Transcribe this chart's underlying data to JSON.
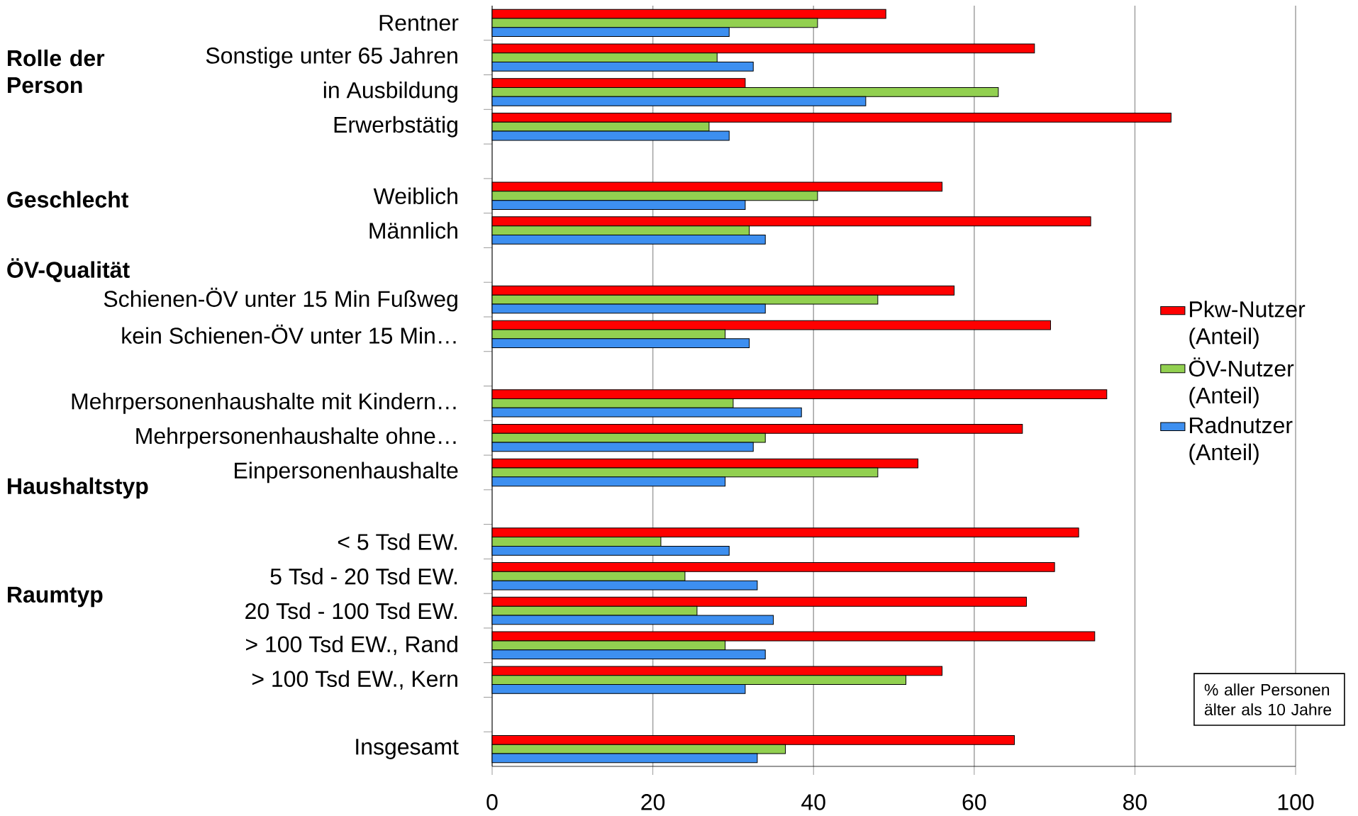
{
  "chart_data": {
    "type": "bar",
    "orientation": "horizontal",
    "categories": [
      "Rentner",
      "Sonstige unter 65 Jahren",
      "in Ausbildung",
      "Erwerbstätig",
      null,
      "Weiblich",
      "Männlich",
      null,
      "Schienen-ÖV unter 15 Min Fußweg",
      "kein Schienen-ÖV unter 15 Min…",
      null,
      "Mehrpersonenhaushalte mit Kindern…",
      "Mehrpersonenhaushalte ohne…",
      "Einpersonenhaushalte",
      null,
      "< 5 Tsd EW.",
      "5 Tsd - 20 Tsd EW.",
      "20 Tsd - 100 Tsd EW.",
      "> 100 Tsd EW., Rand",
      "> 100 Tsd EW., Kern",
      null,
      "Insgesamt"
    ],
    "series": [
      {
        "name": "Pkw-Nutzer (Anteil)",
        "color": "#ff0000",
        "values": [
          49,
          67.5,
          31.5,
          84.5,
          null,
          56,
          74.5,
          null,
          57.5,
          69.5,
          null,
          76.5,
          66,
          53,
          null,
          73,
          70,
          66.5,
          75,
          56,
          null,
          65
        ]
      },
      {
        "name": "ÖV-Nutzer (Anteil)",
        "color": "#92d050",
        "values": [
          40.5,
          28,
          63,
          27,
          null,
          40.5,
          32,
          null,
          48,
          29,
          null,
          30,
          34,
          48,
          null,
          21,
          24,
          25.5,
          29,
          51.5,
          null,
          36.5
        ]
      },
      {
        "name": "Radnutzer (Anteil)",
        "color": "#3d8ff0",
        "values": [
          29.5,
          32.5,
          46.5,
          29.5,
          null,
          31.5,
          34,
          null,
          34,
          32,
          null,
          38.5,
          32.5,
          29,
          null,
          29.5,
          33,
          35,
          34,
          31.5,
          null,
          33
        ]
      }
    ],
    "xlim": [
      0,
      100
    ],
    "xticks": [
      0,
      20,
      40,
      60,
      80,
      100
    ],
    "grid": "x",
    "legend": "right",
    "annotations": [
      "Rolle der Person",
      "Geschlecht",
      "ÖV-Qualität",
      "Haushaltstyp",
      "Raumtyp",
      "% aller Personen älter als 10 Jahre"
    ]
  }
}
